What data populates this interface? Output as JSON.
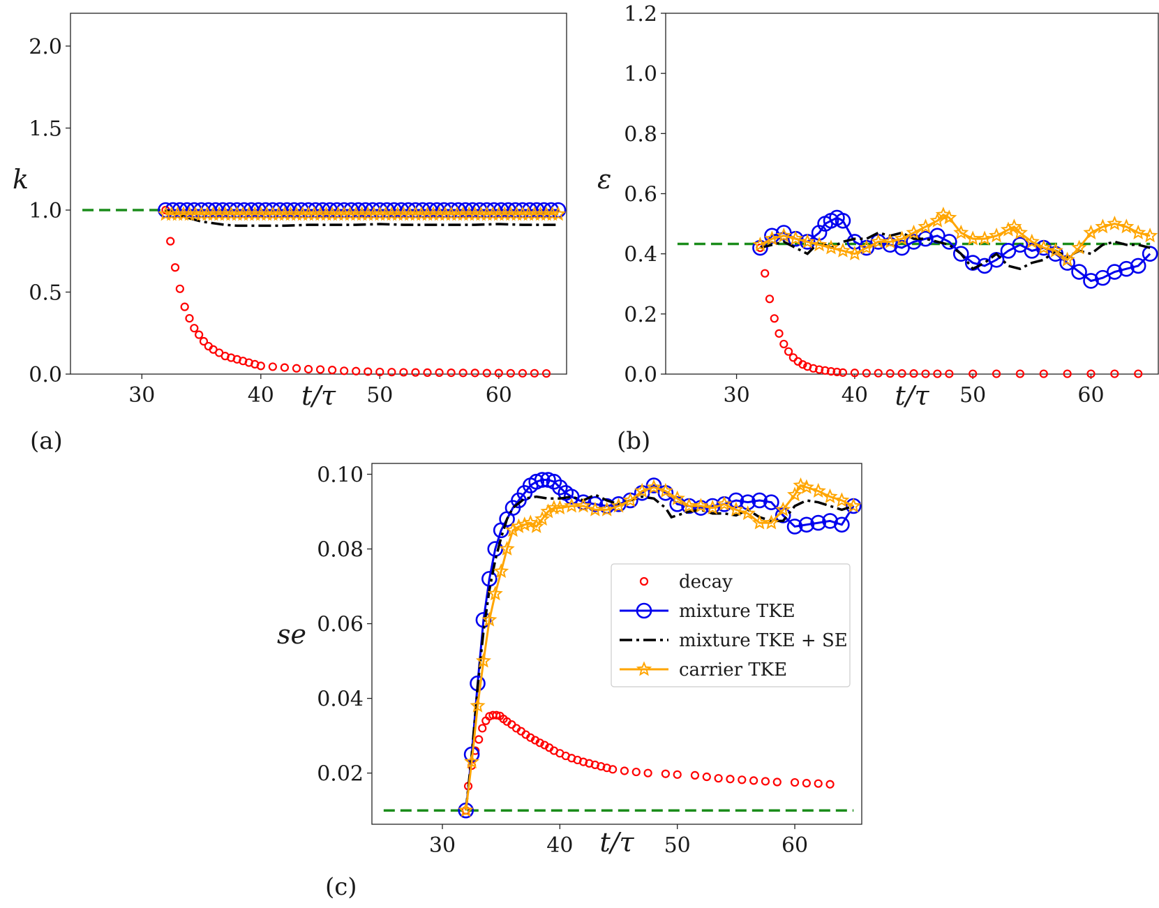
{
  "figure": {
    "panel_labels": [
      "(a)",
      "(b)",
      "(c)"
    ]
  },
  "colors": {
    "decay": "#ff0000",
    "mixture_tke": "#0000ee",
    "mixture_tke_se": "#000000",
    "carrier_tke": "#ffa500",
    "reference": "#1a8c1a",
    "axes": "#222222"
  },
  "legend": {
    "entries": [
      {
        "key": "decay",
        "label": "decay"
      },
      {
        "key": "mixture_tke",
        "label": "mixture TKE"
      },
      {
        "key": "mixture_tke_se",
        "label": "mixture TKE + SE"
      },
      {
        "key": "carrier_tke",
        "label": "carrier TKE"
      }
    ]
  },
  "chart_data": [
    {
      "panel": "(a)",
      "type": "line",
      "ylabel": "k",
      "xlabel": "t/τ",
      "xlim": [
        24,
        65.7
      ],
      "ylim": [
        0,
        2.2
      ],
      "xticks": [
        "30",
        "40",
        "50",
        "60"
      ],
      "yticks": [
        "0.0",
        "0.5",
        "1.0",
        "1.5",
        "2.0"
      ],
      "reference": {
        "x": [
          25,
          32
        ],
        "y": 1.0
      },
      "series": {
        "decay": {
          "x": [
            32,
            32.4,
            32.8,
            33.2,
            33.6,
            34.0,
            34.4,
            34.8,
            35.2,
            35.6,
            36.0,
            36.5,
            37.0,
            37.5,
            38.0,
            38.5,
            39.0,
            39.5,
            40.0,
            41.0,
            42.0,
            43.0,
            44.0,
            45.0,
            46.0,
            47.0,
            48.0,
            49.0,
            50.0,
            51.0,
            52.0,
            53.0,
            54.0,
            55.0,
            56.0,
            57.0,
            58.0,
            59.0,
            60.0,
            61.0,
            62.0,
            63.0,
            64.0
          ],
          "y": [
            1.0,
            0.81,
            0.65,
            0.52,
            0.41,
            0.34,
            0.28,
            0.24,
            0.2,
            0.17,
            0.15,
            0.13,
            0.11,
            0.1,
            0.09,
            0.08,
            0.07,
            0.06,
            0.05,
            0.045,
            0.04,
            0.035,
            0.03,
            0.028,
            0.025,
            0.02,
            0.018,
            0.015,
            0.013,
            0.012,
            0.011,
            0.01,
            0.009,
            0.009,
            0.008,
            0.007,
            0.007,
            0.006,
            0.006,
            0.005,
            0.005,
            0.005,
            0.004
          ]
        },
        "mixture_tke": {
          "x_start": 32,
          "x_end": 65,
          "step": 0.6,
          "y": 1.0
        },
        "mixture_tke_se": {
          "x": [
            32,
            33,
            34,
            35,
            36,
            37,
            38,
            40,
            42,
            44,
            46,
            48,
            50,
            52,
            54,
            56,
            58,
            60,
            62,
            64,
            65
          ],
          "y": [
            1.0,
            0.975,
            0.95,
            0.93,
            0.92,
            0.91,
            0.905,
            0.905,
            0.905,
            0.91,
            0.91,
            0.91,
            0.915,
            0.91,
            0.91,
            0.91,
            0.91,
            0.915,
            0.91,
            0.91,
            0.91
          ]
        },
        "carrier_tke": {
          "x_start": 32,
          "x_end": 65,
          "step": 0.5,
          "y": 0.975
        }
      }
    },
    {
      "panel": "(b)",
      "type": "line",
      "ylabel": "ε",
      "xlabel": "t/τ",
      "xlim": [
        24,
        65.7
      ],
      "ylim": [
        0,
        1.2
      ],
      "xticks": [
        "30",
        "40",
        "50",
        "60"
      ],
      "yticks": [
        "0.0",
        "0.2",
        "0.4",
        "0.6",
        "0.8",
        "1.0",
        "1.2"
      ],
      "reference": {
        "x": [
          25,
          65
        ],
        "y": 0.433
      },
      "series": {
        "decay": {
          "x": [
            32,
            32.4,
            32.8,
            33.2,
            33.6,
            34.0,
            34.4,
            34.8,
            35.2,
            35.6,
            36.0,
            36.5,
            37.0,
            37.5,
            38.0,
            38.5,
            39.0,
            40.0,
            41.0,
            42.0,
            43.0,
            44.0,
            45.0,
            46.0,
            47.0,
            48.0,
            50.0,
            52.0,
            54.0,
            56.0,
            58.0,
            60.0,
            62.0,
            64.0
          ],
          "y": [
            0.42,
            0.335,
            0.25,
            0.185,
            0.135,
            0.1,
            0.075,
            0.055,
            0.042,
            0.032,
            0.025,
            0.019,
            0.015,
            0.012,
            0.009,
            0.007,
            0.005,
            0.004,
            0.003,
            0.003,
            0.002,
            0.002,
            0.002,
            0.001,
            0.001,
            0.001,
            0.001,
            0.001,
            0.001,
            0.001,
            0.001,
            0.001,
            0.001,
            0.001
          ]
        },
        "mixture_tke": {
          "x": [
            32,
            33,
            34,
            35,
            36,
            37,
            37.5,
            38,
            38.5,
            39,
            40,
            41,
            42,
            43,
            44,
            45,
            46,
            47,
            48,
            49,
            50,
            51,
            52,
            53,
            54,
            55,
            56,
            57,
            58,
            59,
            60,
            61,
            62,
            63,
            64,
            65
          ],
          "y": [
            0.42,
            0.46,
            0.47,
            0.45,
            0.44,
            0.47,
            0.5,
            0.51,
            0.52,
            0.51,
            0.44,
            0.42,
            0.44,
            0.43,
            0.42,
            0.44,
            0.45,
            0.46,
            0.44,
            0.4,
            0.37,
            0.36,
            0.38,
            0.41,
            0.43,
            0.41,
            0.42,
            0.4,
            0.37,
            0.34,
            0.31,
            0.32,
            0.34,
            0.35,
            0.36,
            0.4
          ]
        },
        "mixture_tke_se": {
          "x": [
            32,
            33,
            34,
            35,
            36,
            37,
            38,
            39,
            40,
            41,
            42,
            43,
            44,
            45,
            46,
            47,
            48,
            49,
            50,
            51,
            52,
            53,
            54,
            55,
            56,
            57,
            58,
            59,
            60,
            61,
            62,
            63,
            64,
            65
          ],
          "y": [
            0.42,
            0.43,
            0.44,
            0.42,
            0.4,
            0.44,
            0.42,
            0.44,
            0.45,
            0.45,
            0.47,
            0.46,
            0.47,
            0.45,
            0.45,
            0.44,
            0.43,
            0.4,
            0.35,
            0.37,
            0.4,
            0.36,
            0.35,
            0.37,
            0.38,
            0.41,
            0.39,
            0.41,
            0.4,
            0.43,
            0.44,
            0.43,
            0.43,
            0.42
          ]
        },
        "carrier_tke": {
          "x": [
            32,
            33,
            34,
            35,
            36,
            37,
            38,
            39,
            40,
            41,
            42,
            43,
            44,
            45,
            46,
            47,
            47.5,
            48,
            49,
            50,
            51,
            52,
            53,
            53.5,
            54,
            55,
            56,
            57,
            58,
            59,
            60,
            61,
            62,
            63,
            64,
            65
          ],
          "y": [
            0.43,
            0.45,
            0.46,
            0.45,
            0.44,
            0.43,
            0.42,
            0.41,
            0.4,
            0.42,
            0.44,
            0.44,
            0.45,
            0.47,
            0.49,
            0.51,
            0.53,
            0.52,
            0.47,
            0.45,
            0.45,
            0.46,
            0.48,
            0.49,
            0.47,
            0.44,
            0.42,
            0.41,
            0.38,
            0.42,
            0.47,
            0.49,
            0.5,
            0.49,
            0.47,
            0.46
          ]
        }
      }
    },
    {
      "panel": "(c)",
      "type": "line",
      "ylabel": "se",
      "xlabel": "t/τ",
      "xlim": [
        24,
        65.7
      ],
      "ylim": [
        0.0063,
        0.1029
      ],
      "xticks": [
        "30",
        "40",
        "50",
        "60"
      ],
      "yticks": [
        "0.02",
        "0.04",
        "0.06",
        "0.08",
        "0.10"
      ],
      "reference": {
        "x": [
          25,
          65
        ],
        "y": 0.01
      },
      "series": {
        "decay": {
          "x": [
            32,
            32.2,
            32.5,
            32.8,
            33.1,
            33.4,
            33.7,
            34.0,
            34.3,
            34.6,
            34.9,
            35.2,
            35.5,
            35.9,
            36.3,
            36.7,
            37.1,
            37.5,
            37.9,
            38.3,
            38.7,
            39.1,
            39.5,
            40.0,
            40.5,
            41.0,
            41.5,
            42.0,
            42.5,
            43.0,
            43.5,
            44.0,
            44.5,
            45.5,
            46.5,
            47.5,
            49.0,
            50.0,
            51.5,
            52.5,
            53.5,
            54.5,
            55.5,
            56.5,
            57.5,
            58.5,
            60.0,
            61.0,
            62.0,
            63.0
          ],
          "y": [
            0.01,
            0.0165,
            0.022,
            0.026,
            0.029,
            0.032,
            0.034,
            0.0352,
            0.0355,
            0.0355,
            0.0353,
            0.0345,
            0.0338,
            0.033,
            0.032,
            0.0312,
            0.0303,
            0.0295,
            0.0288,
            0.0281,
            0.0275,
            0.0268,
            0.026,
            0.0253,
            0.0246,
            0.024,
            0.0235,
            0.023,
            0.0226,
            0.0222,
            0.0218,
            0.0214,
            0.021,
            0.0206,
            0.0203,
            0.02,
            0.0198,
            0.0196,
            0.0194,
            0.019,
            0.0186,
            0.0184,
            0.0182,
            0.018,
            0.0178,
            0.0176,
            0.0175,
            0.0173,
            0.0172,
            0.017
          ]
        },
        "mixture_tke": {
          "x": [
            32,
            32.5,
            33,
            33.5,
            34,
            34.5,
            35,
            35.5,
            36,
            36.5,
            37,
            37.5,
            38,
            38.5,
            39,
            39.5,
            40,
            40.5,
            41,
            42,
            43,
            44,
            45,
            46,
            47,
            48,
            49,
            50,
            51,
            52,
            53,
            54,
            55,
            56,
            57,
            58,
            59,
            60,
            61,
            62,
            63,
            64,
            65
          ],
          "y": [
            0.01,
            0.025,
            0.044,
            0.061,
            0.072,
            0.08,
            0.085,
            0.088,
            0.091,
            0.093,
            0.095,
            0.097,
            0.098,
            0.0985,
            0.0985,
            0.098,
            0.0965,
            0.095,
            0.094,
            0.0925,
            0.092,
            0.0915,
            0.092,
            0.093,
            0.095,
            0.097,
            0.095,
            0.092,
            0.0915,
            0.091,
            0.0915,
            0.092,
            0.093,
            0.0925,
            0.093,
            0.0925,
            0.089,
            0.086,
            0.0865,
            0.087,
            0.0875,
            0.0865,
            0.0915
          ]
        },
        "mixture_tke_se": {
          "x": [
            32,
            32.5,
            33,
            33.5,
            34,
            34.5,
            35,
            35.5,
            36,
            37,
            38,
            39,
            40,
            41,
            42,
            43,
            44,
            45,
            46,
            47,
            48,
            49,
            49.5,
            50,
            51,
            52,
            53,
            54,
            55,
            56,
            57,
            58,
            59,
            60,
            61,
            62,
            63,
            64,
            65
          ],
          "y": [
            0.01,
            0.025,
            0.043,
            0.058,
            0.069,
            0.077,
            0.083,
            0.088,
            0.091,
            0.0935,
            0.094,
            0.0935,
            0.0935,
            0.094,
            0.093,
            0.0945,
            0.093,
            0.092,
            0.093,
            0.094,
            0.0935,
            0.091,
            0.0885,
            0.089,
            0.09,
            0.0905,
            0.0895,
            0.0895,
            0.089,
            0.0905,
            0.0885,
            0.0875,
            0.0875,
            0.0915,
            0.093,
            0.0925,
            0.0915,
            0.0905,
            0.0915
          ]
        },
        "carrier_tke": {
          "x": [
            32,
            32.5,
            33,
            33.5,
            34,
            34.5,
            35,
            35.5,
            36,
            36.5,
            37,
            37.5,
            38,
            38.5,
            39,
            39.5,
            40,
            41,
            42,
            43,
            44,
            45,
            46,
            47,
            48,
            49,
            50,
            51,
            52,
            53,
            54,
            55,
            56,
            57,
            58,
            59,
            60,
            60.5,
            61,
            62,
            63,
            64,
            65
          ],
          "y": [
            0.01,
            0.023,
            0.038,
            0.05,
            0.061,
            0.068,
            0.074,
            0.08,
            0.085,
            0.086,
            0.0865,
            0.087,
            0.086,
            0.088,
            0.09,
            0.091,
            0.091,
            0.0915,
            0.0915,
            0.0905,
            0.0905,
            0.0915,
            0.093,
            0.0955,
            0.0965,
            0.0955,
            0.0935,
            0.0915,
            0.0915,
            0.091,
            0.092,
            0.0905,
            0.0895,
            0.087,
            0.087,
            0.0905,
            0.0945,
            0.097,
            0.0965,
            0.0955,
            0.094,
            0.093,
            0.0915
          ]
        }
      }
    }
  ]
}
